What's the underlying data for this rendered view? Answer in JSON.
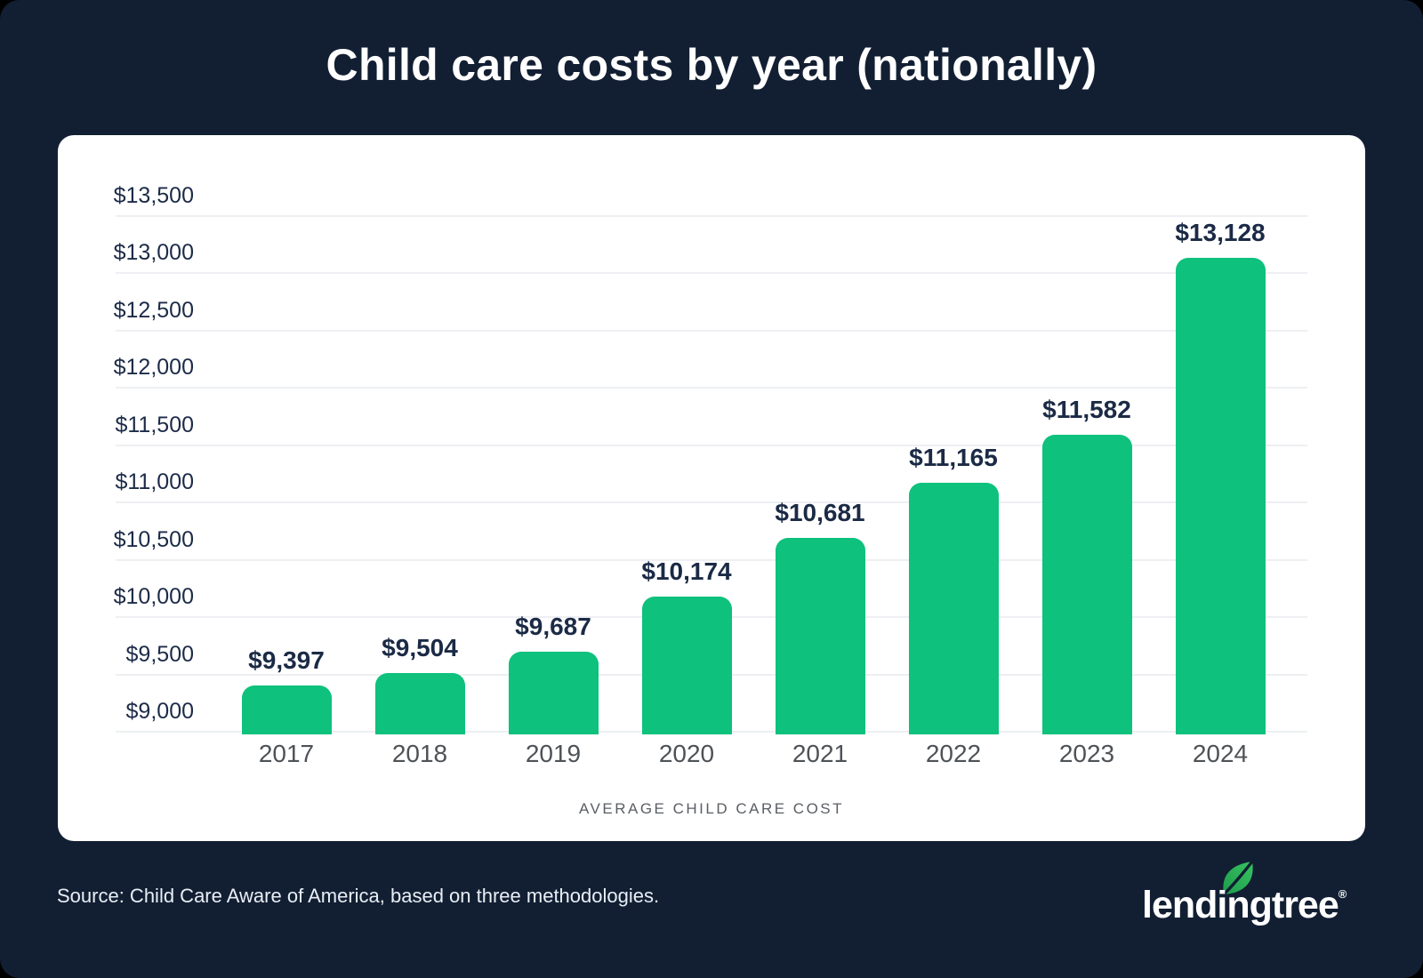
{
  "page": {
    "background_color": "#121F33",
    "card_color": "#FFFFFF",
    "title": "Child care costs by year (nationally)",
    "footer": {
      "source": "Source: Child Care Aware of America, based on three methodologies.",
      "logo_text": "lendingtree",
      "logo_registered": "®",
      "logo_leaf_color_dark": "#1E9C4D",
      "logo_leaf_color_light": "#37C360"
    }
  },
  "chart_data": {
    "type": "bar",
    "title": "Child care costs by year (nationally)",
    "categories": [
      "2017",
      "2018",
      "2019",
      "2020",
      "2021",
      "2022",
      "2023",
      "2024"
    ],
    "values": [
      9397,
      9504,
      9687,
      10174,
      10681,
      11165,
      11582,
      13128
    ],
    "data_labels": [
      "$9,397",
      "$9,504",
      "$9,687",
      "$10,174",
      "$10,681",
      "$11,165",
      "$11,582",
      "$13,128"
    ],
    "xlabel": "AVERAGE CHILD CARE COST",
    "ylabel": "",
    "y_ticks": [
      "$13,500",
      "$13,000",
      "$12,500",
      "$12,000",
      "$11,500",
      "$11,000",
      "$10,500",
      "$10,000",
      "$9,500",
      "$9,000"
    ],
    "ylim": [
      9000,
      13500
    ],
    "grid": true,
    "legend_position": "none",
    "bar_color": "#0EC17D",
    "gridline_color": "#EDEFF2",
    "value_label_color": "#1B2A45",
    "tick_label_color": "#1C2B48",
    "category_label_color": "#4E5257"
  }
}
